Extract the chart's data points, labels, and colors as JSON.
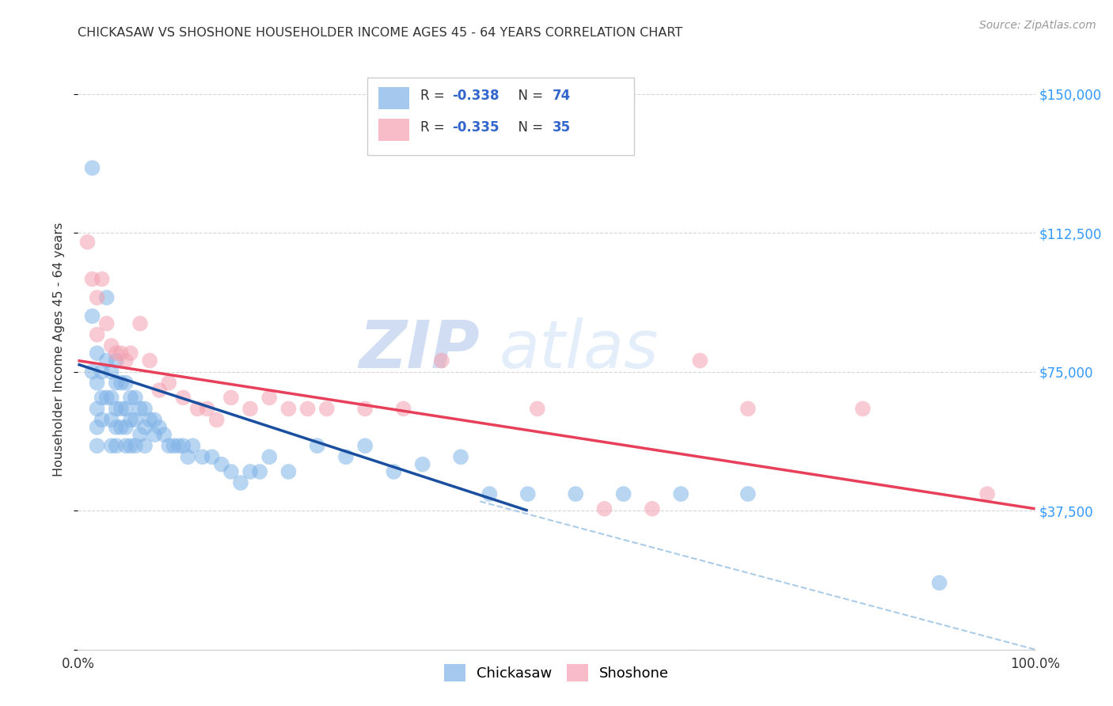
{
  "title": "CHICKASAW VS SHOSHONE HOUSEHOLDER INCOME AGES 45 - 64 YEARS CORRELATION CHART",
  "source": "Source: ZipAtlas.com",
  "ylabel": "Householder Income Ages 45 - 64 years",
  "chickasaw_R": -0.338,
  "chickasaw_N": 74,
  "shoshone_R": -0.335,
  "shoshone_N": 35,
  "chickasaw_color": "#7FB3E8",
  "shoshone_color": "#F4A0B0",
  "chickasaw_line_color": "#1A4FA0",
  "shoshone_line_color": "#E8405A",
  "dashed_line_color": "#AACCE8",
  "xlim": [
    0,
    100
  ],
  "ylim": [
    0,
    162000
  ],
  "yticks": [
    0,
    37500,
    75000,
    112500,
    150000
  ],
  "ytick_labels": [
    "",
    "$37,500",
    "$75,000",
    "$112,500",
    "$150,000"
  ],
  "background_color": "#FFFFFF",
  "watermark_zip": "ZIP",
  "watermark_atlas": "atlas",
  "chickasaw_x": [
    1.5,
    1.5,
    1.5,
    2.0,
    2.0,
    2.0,
    2.0,
    2.0,
    2.5,
    2.5,
    2.5,
    3.0,
    3.0,
    3.0,
    3.5,
    3.5,
    3.5,
    3.5,
    4.0,
    4.0,
    4.0,
    4.0,
    4.0,
    4.5,
    4.5,
    4.5,
    5.0,
    5.0,
    5.0,
    5.0,
    5.5,
    5.5,
    5.5,
    6.0,
    6.0,
    6.0,
    6.5,
    6.5,
    7.0,
    7.0,
    7.0,
    7.5,
    8.0,
    8.0,
    8.5,
    9.0,
    9.5,
    10.0,
    10.5,
    11.0,
    11.5,
    12.0,
    13.0,
    14.0,
    15.0,
    16.0,
    17.0,
    18.0,
    19.0,
    20.0,
    22.0,
    25.0,
    28.0,
    30.0,
    33.0,
    36.0,
    40.0,
    43.0,
    47.0,
    52.0,
    57.0,
    63.0,
    70.0,
    90.0
  ],
  "chickasaw_y": [
    130000,
    90000,
    75000,
    80000,
    72000,
    65000,
    60000,
    55000,
    75000,
    68000,
    62000,
    95000,
    78000,
    68000,
    75000,
    68000,
    62000,
    55000,
    78000,
    72000,
    65000,
    60000,
    55000,
    72000,
    65000,
    60000,
    72000,
    65000,
    60000,
    55000,
    68000,
    62000,
    55000,
    68000,
    62000,
    55000,
    65000,
    58000,
    65000,
    60000,
    55000,
    62000,
    62000,
    58000,
    60000,
    58000,
    55000,
    55000,
    55000,
    55000,
    52000,
    55000,
    52000,
    52000,
    50000,
    48000,
    45000,
    48000,
    48000,
    52000,
    48000,
    55000,
    52000,
    55000,
    48000,
    50000,
    52000,
    42000,
    42000,
    42000,
    42000,
    42000,
    42000,
    18000
  ],
  "shoshone_x": [
    1.0,
    1.5,
    2.0,
    2.0,
    2.5,
    3.0,
    3.5,
    4.0,
    4.5,
    5.0,
    5.5,
    6.5,
    7.5,
    8.5,
    9.5,
    11.0,
    12.5,
    13.5,
    14.5,
    16.0,
    18.0,
    20.0,
    22.0,
    24.0,
    26.0,
    30.0,
    34.0,
    38.0,
    48.0,
    55.0,
    60.0,
    65.0,
    70.0,
    82.0,
    95.0
  ],
  "shoshone_y": [
    110000,
    100000,
    95000,
    85000,
    100000,
    88000,
    82000,
    80000,
    80000,
    78000,
    80000,
    88000,
    78000,
    70000,
    72000,
    68000,
    65000,
    65000,
    62000,
    68000,
    65000,
    68000,
    65000,
    65000,
    65000,
    65000,
    65000,
    78000,
    65000,
    38000,
    38000,
    78000,
    65000,
    65000,
    42000
  ],
  "chickasaw_line_x": [
    0,
    47
  ],
  "chickasaw_line_y": [
    77000,
    37500
  ],
  "shoshone_line_x": [
    0,
    100
  ],
  "shoshone_line_y": [
    78000,
    38000
  ],
  "dashed_line_x": [
    42,
    100
  ],
  "dashed_line_y": [
    40000,
    0
  ]
}
